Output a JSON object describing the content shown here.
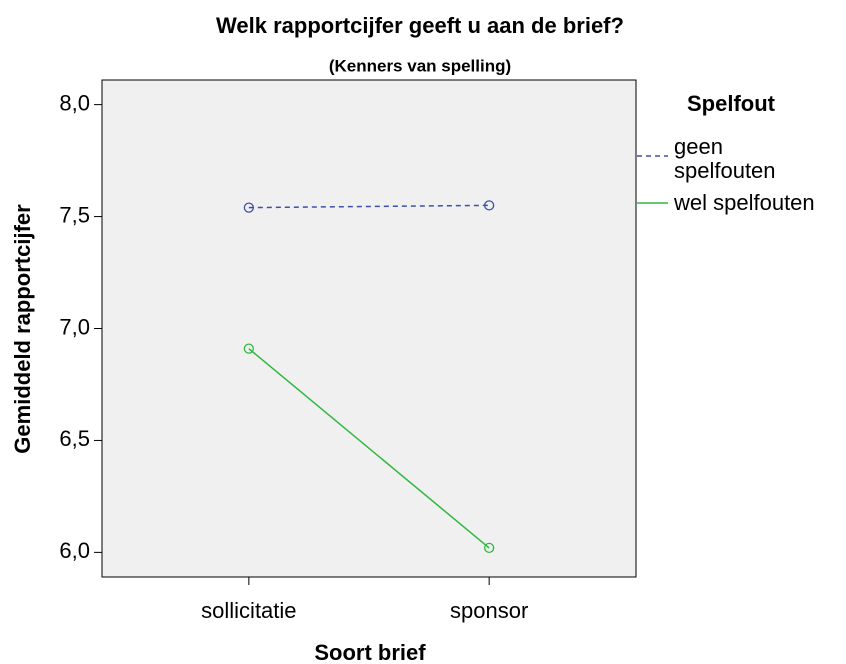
{
  "chart_data": {
    "type": "line",
    "title": "Welk rapportcijfer geeft u aan de brief?",
    "subtitle": "(Kenners van spelling)",
    "x_label": "Soort brief",
    "y_label": "Gemiddeld rapportcijfer",
    "categories": [
      "sollicitatie",
      "sponsor"
    ],
    "legend_title": "Spelfout",
    "legend_position": "right",
    "series": [
      {
        "name": "geen spelfouten",
        "color": "#3d4fa6",
        "dash": true,
        "values": [
          7.54,
          7.55
        ]
      },
      {
        "name": "wel spelfouten",
        "color": "#2fb83f",
        "dash": false,
        "values": [
          6.91,
          6.02
        ]
      }
    ],
    "ylim": [
      5.89,
      8.11
    ],
    "yticks": [
      {
        "value": 6,
        "label": "6,0"
      },
      {
        "value": 6.5,
        "label": "6,5"
      },
      {
        "value": 7,
        "label": "7,0"
      },
      {
        "value": 7.5,
        "label": "7,5"
      },
      {
        "value": 8,
        "label": "8,0"
      }
    ],
    "grid": false
  }
}
